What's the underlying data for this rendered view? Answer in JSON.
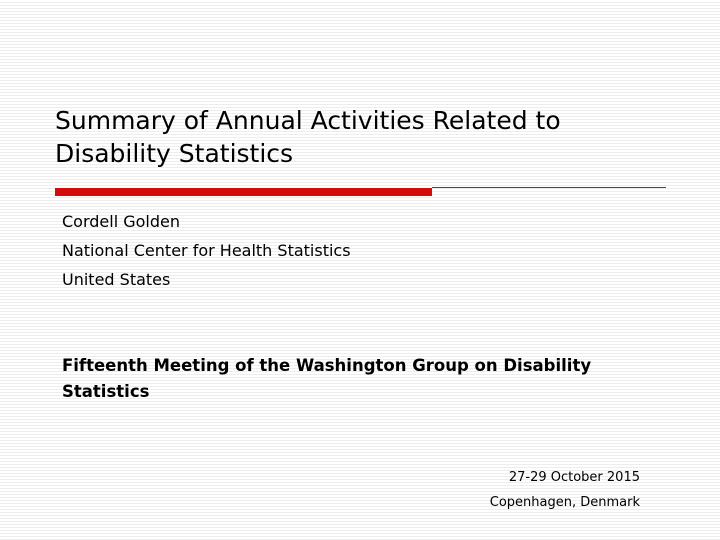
{
  "slide": {
    "title": "Summary of Annual Activities Related to Disability Statistics",
    "author": {
      "name": "Cordell Golden",
      "organization": "National Center for Health Statistics",
      "country": "United States"
    },
    "meeting": "Fifteenth Meeting of the Washington Group on Disability Statistics",
    "date": "27-29 October 2015",
    "location": "Copenhagen, Denmark"
  },
  "colors": {
    "accent": "#d40c0c",
    "background": "#ffffff",
    "stripe": "#ededed",
    "text": "#000000"
  }
}
